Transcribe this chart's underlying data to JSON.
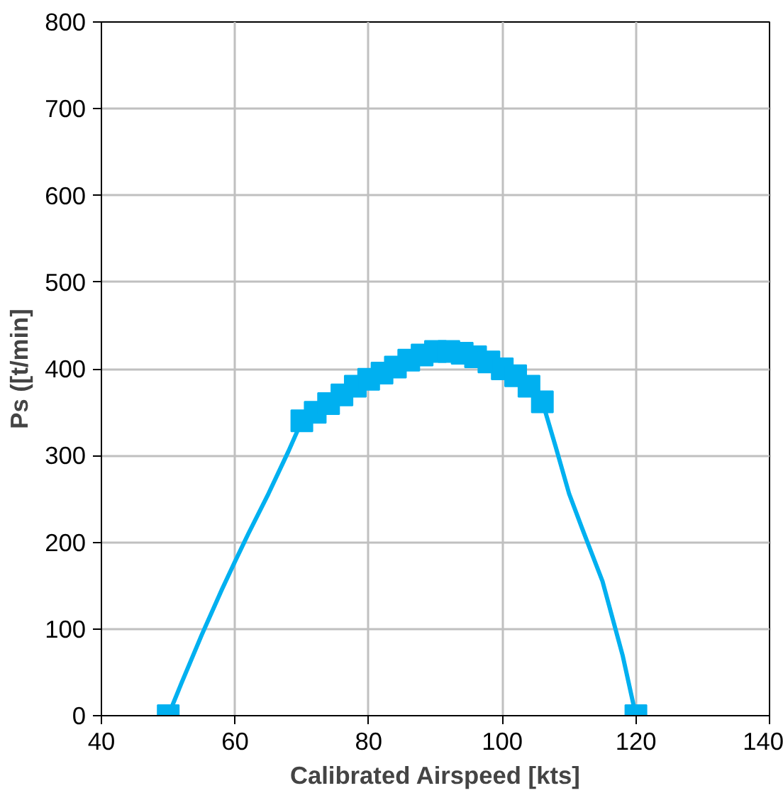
{
  "chart_data": {
    "type": "line",
    "xlabel": "Calibrated Airspeed [kts]",
    "ylabel": "Ps ([t/min]",
    "xlim": [
      40,
      140
    ],
    "xticks": [
      40,
      60,
      80,
      100,
      120,
      140
    ],
    "ylim": [
      0,
      800
    ],
    "yticks": [
      0,
      100,
      200,
      300,
      400,
      500,
      600,
      700,
      800
    ],
    "grid": true,
    "series": [
      {
        "color": "#00b0f0",
        "marker": "none",
        "x": [
          50,
          52,
          55,
          58,
          60,
          62,
          65,
          68,
          70,
          72,
          74,
          76,
          78,
          80,
          82,
          84,
          86,
          88,
          90,
          92,
          94,
          96,
          98,
          100,
          102,
          104,
          106,
          108,
          110,
          112,
          115,
          118,
          120
        ],
        "values": [
          0,
          38,
          93,
          145,
          178,
          210,
          256,
          305,
          340,
          350,
          360,
          370,
          380,
          388,
          395,
          402,
          410,
          416,
          420,
          420,
          418,
          414,
          408,
          400,
          392,
          380,
          362,
          310,
          256,
          215,
          155,
          70,
          0
        ]
      },
      {
        "type": "scatter",
        "color": "#00b0f0",
        "marker": "square",
        "x": [
          50,
          70,
          72,
          74,
          76,
          78,
          80,
          82,
          84,
          86,
          88,
          90,
          92,
          94,
          96,
          98,
          100,
          102,
          104,
          106,
          120
        ],
        "values": [
          0,
          340,
          350,
          360,
          370,
          380,
          388,
          395,
          402,
          410,
          416,
          420,
          420,
          418,
          414,
          408,
          400,
          392,
          380,
          362,
          0
        ]
      }
    ]
  }
}
